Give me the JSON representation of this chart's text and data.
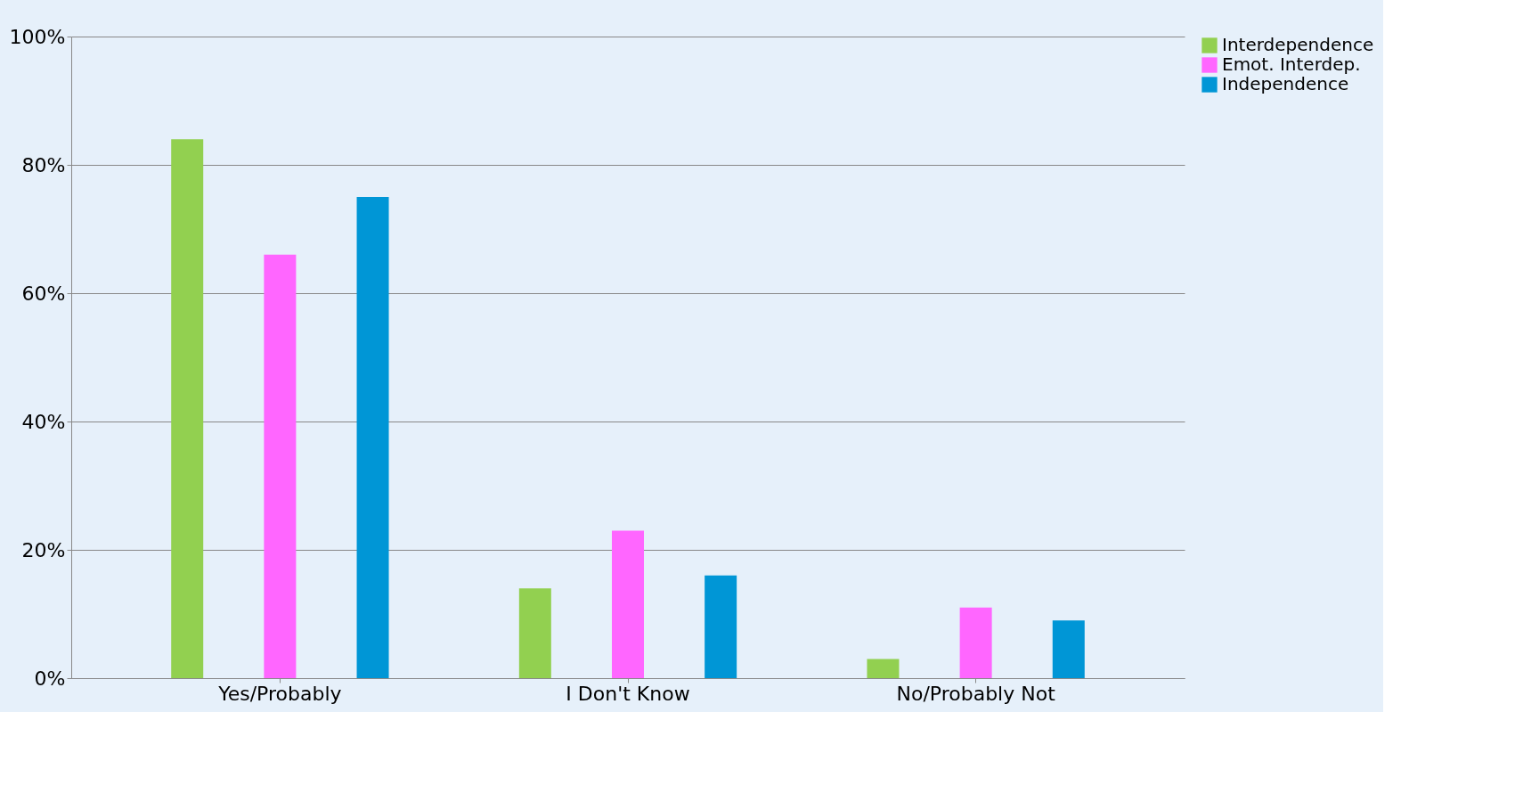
{
  "chart_data": {
    "type": "bar",
    "categories": [
      "Yes/Probably",
      "I Don't Know",
      "No/Probably Not"
    ],
    "series": [
      {
        "name": "Interdependence",
        "color": "#92d050",
        "values": [
          84,
          14,
          3
        ]
      },
      {
        "name": "Emot. Interdep.",
        "color": "#ff66ff",
        "values": [
          66,
          23,
          11
        ]
      },
      {
        "name": "Independence",
        "color": "#0096d6",
        "values": [
          75,
          16,
          9
        ]
      }
    ],
    "ylim": [
      0,
      100
    ],
    "yticks": [
      {
        "value": 0,
        "label": "0%"
      },
      {
        "value": 20,
        "label": "20%"
      },
      {
        "value": 40,
        "label": "40%"
      },
      {
        "value": 60,
        "label": "60%"
      },
      {
        "value": 80,
        "label": "80%"
      },
      {
        "value": 100,
        "label": "100%"
      }
    ],
    "grid": "y",
    "legend": "right"
  }
}
